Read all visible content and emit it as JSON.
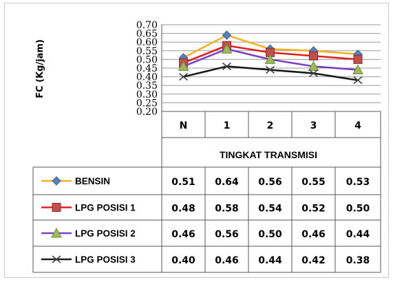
{
  "chart_data": {
    "type": "line",
    "ylabel": "FC (Kg/jam)",
    "xlabel": "TINGKAT TRANSMISI",
    "categories": [
      "N",
      "1",
      "2",
      "3",
      "4"
    ],
    "ylim": [
      0.2,
      0.7
    ],
    "yticks": [
      "0.70",
      "0.65",
      "0.60",
      "0.55",
      "0.50",
      "0.45",
      "0.40",
      "0.35",
      "0.30",
      "0.25",
      "0.20"
    ],
    "grid": true,
    "legend_position": "bottom data table",
    "series": [
      {
        "name": "BENSIN",
        "color": "#F2B125",
        "marker": "diamond",
        "marker_color": "#5B7FB8",
        "values": [
          0.51,
          0.64,
          0.56,
          0.55,
          0.53
        ],
        "labels": [
          "0.51",
          "0.64",
          "0.56",
          "0.55",
          "0.53"
        ]
      },
      {
        "name": "LPG POSISI 1",
        "color": "#E02020",
        "marker": "square",
        "marker_color": "#C0504D",
        "values": [
          0.48,
          0.58,
          0.54,
          0.52,
          0.5
        ],
        "labels": [
          "0.48",
          "0.58",
          "0.54",
          "0.52",
          "0.50"
        ]
      },
      {
        "name": "LPG POSISI 2",
        "color": "#7B3FC0",
        "marker": "triangle",
        "marker_color": "#9BBB59",
        "values": [
          0.46,
          0.56,
          0.5,
          0.46,
          0.44
        ],
        "labels": [
          "0.46",
          "0.56",
          "0.50",
          "0.46",
          "0.44"
        ]
      },
      {
        "name": "LPG POSISI 3",
        "color": "#1a1a1a",
        "marker": "x",
        "marker_color": "#404040",
        "values": [
          0.4,
          0.46,
          0.44,
          0.42,
          0.38
        ],
        "labels": [
          "0.40",
          "0.46",
          "0.44",
          "0.42",
          "0.38"
        ]
      }
    ]
  }
}
